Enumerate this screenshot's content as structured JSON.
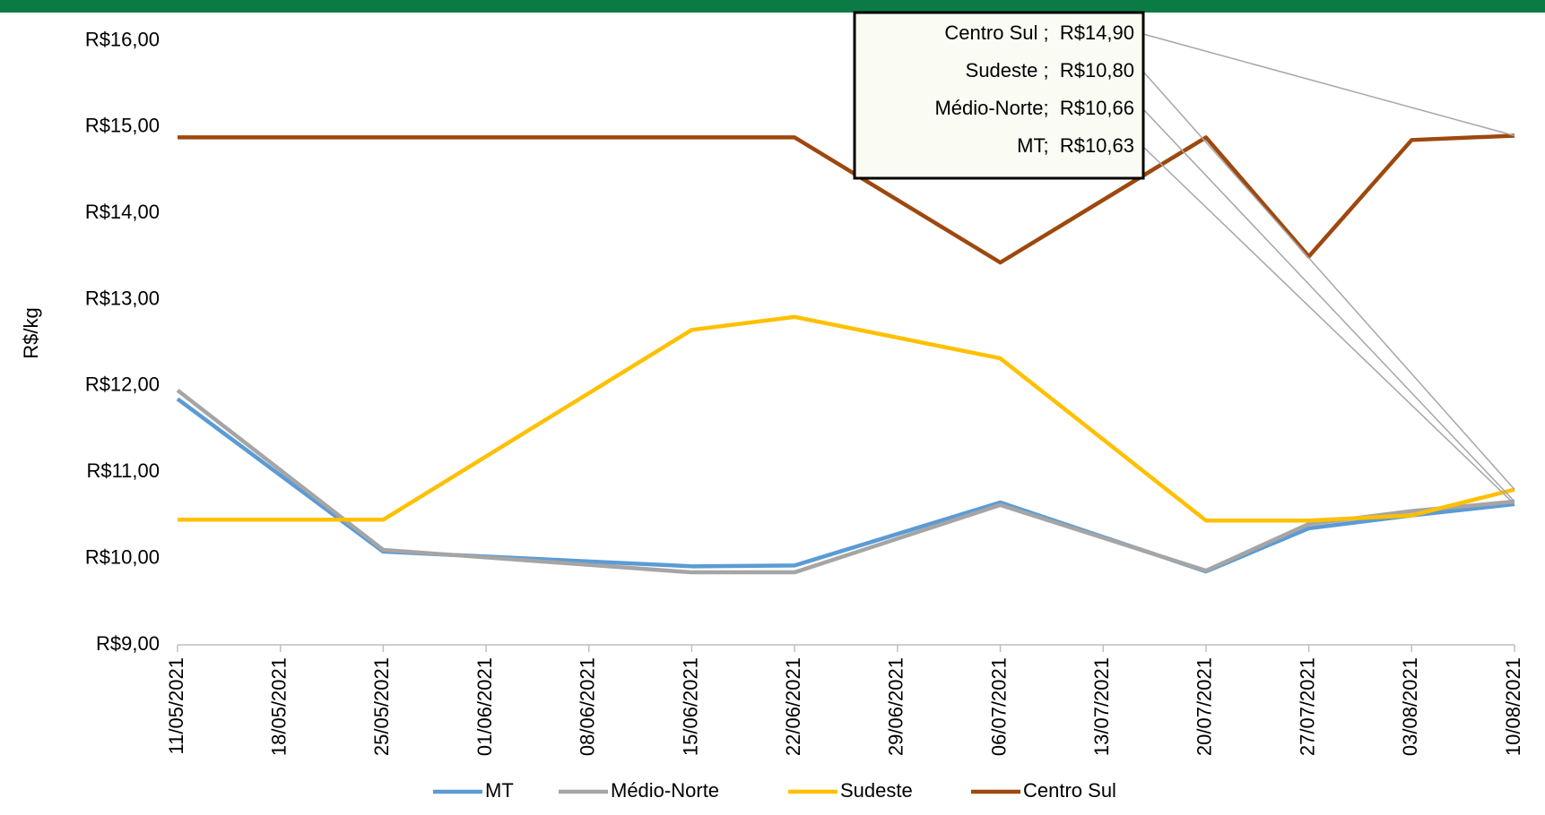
{
  "chart_data": {
    "type": "line",
    "y_label": "R$/kg",
    "x": [
      "11/05/2021",
      "25/05/2021",
      "15/06/2021",
      "22/06/2021",
      "06/07/2021",
      "20/07/2021",
      "27/07/2021",
      "03/08/2021",
      "10/08/2021"
    ],
    "xlim": [
      "11/05/2021",
      "10/08/2021"
    ],
    "xticks": [
      "11/05/2021",
      "18/05/2021",
      "25/05/2021",
      "01/06/2021",
      "08/06/2021",
      "15/06/2021",
      "22/06/2021",
      "29/06/2021",
      "06/07/2021",
      "13/07/2021",
      "20/07/2021",
      "27/07/2021",
      "03/08/2021",
      "10/08/2021"
    ],
    "ylim": [
      9,
      16
    ],
    "yticks": [
      {
        "value": 9,
        "label": "R$9,00"
      },
      {
        "value": 10,
        "label": "R$10,00"
      },
      {
        "value": 11,
        "label": "R$11,00"
      },
      {
        "value": 12,
        "label": "R$12,00"
      },
      {
        "value": 13,
        "label": "R$13,00"
      },
      {
        "value": 14,
        "label": "R$14,00"
      },
      {
        "value": 15,
        "label": "R$15,00"
      },
      {
        "value": 16,
        "label": "R$16,00"
      }
    ],
    "grid": false,
    "legend": "bottom",
    "series": [
      {
        "name": "MT",
        "color": "#5b9bd5",
        "values": [
          11.85,
          10.08,
          9.91,
          9.92,
          10.65,
          9.85,
          10.35,
          10.5,
          10.63
        ],
        "value_labels": [
          null,
          null,
          null,
          null,
          null,
          null,
          null,
          null,
          "MT;  R$10,63"
        ]
      },
      {
        "name": "Médio-Norte",
        "color": "#a5a5a5",
        "values": [
          11.95,
          10.1,
          9.84,
          9.84,
          10.62,
          9.86,
          10.4,
          10.55,
          10.66
        ],
        "value_labels": [
          null,
          null,
          null,
          null,
          null,
          null,
          null,
          null,
          "Médio-Norte;  R$10,66"
        ]
      },
      {
        "name": "Sudeste",
        "color": "#ffc000",
        "values": [
          10.45,
          10.45,
          12.65,
          12.8,
          12.32,
          10.44,
          10.44,
          10.5,
          10.8
        ],
        "value_labels": [
          null,
          null,
          null,
          null,
          null,
          null,
          null,
          null,
          "Sudeste ;  R$10,80"
        ]
      },
      {
        "name": "Centro Sul",
        "color": "#9e480e",
        "values": [
          14.88,
          14.88,
          14.88,
          14.88,
          13.43,
          14.88,
          13.5,
          14.85,
          14.9
        ],
        "value_labels": [
          null,
          null,
          null,
          null,
          null,
          null,
          null,
          null,
          "Centro Sul ;  R$14,90"
        ]
      }
    ]
  }
}
